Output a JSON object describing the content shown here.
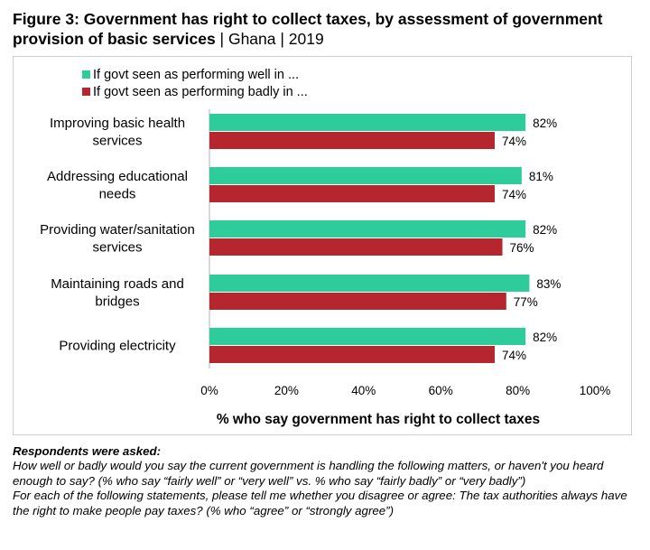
{
  "title": {
    "main": "Figure 3: Government has right to collect taxes, by assessment of government provision of basic services",
    "sub": " | Ghana | 2019"
  },
  "chart_data": {
    "type": "bar",
    "orientation": "horizontal",
    "categories": [
      [
        "Improving basic health",
        "services"
      ],
      [
        "Addressing educational",
        "needs"
      ],
      [
        "Providing water/sanitation",
        "services"
      ],
      [
        "Maintaining roads and",
        "bridges"
      ],
      [
        "Providing electricity"
      ]
    ],
    "series": [
      {
        "name": "If govt seen as performing well in ...",
        "color": "#2ECC9A",
        "values": [
          82,
          81,
          82,
          83,
          82
        ]
      },
      {
        "name": "If govt seen as performing badly in ...",
        "color": "#B5262F",
        "values": [
          74,
          74,
          76,
          77,
          74
        ]
      }
    ],
    "value_suffix": "%",
    "xlim": [
      0,
      100
    ],
    "xticks": [
      "0%",
      "20%",
      "40%",
      "60%",
      "80%",
      "100%"
    ],
    "xlabel": "% who say government has right to collect taxes",
    "legend": "top-left",
    "grid": false
  },
  "notes": {
    "heading": "Respondents were asked:",
    "q1": "How well or badly would you say the current government is handling the following matters, or haven't you heard enough to say? (% who say “fairly well” or “very well” vs. % who say “fairly badly” or “very badly”)",
    "q2": "For each of the following statements, please tell me whether you disagree or agree: The tax authorities always have the right to make people pay taxes? (% who “agree” or “strongly agree”)"
  }
}
